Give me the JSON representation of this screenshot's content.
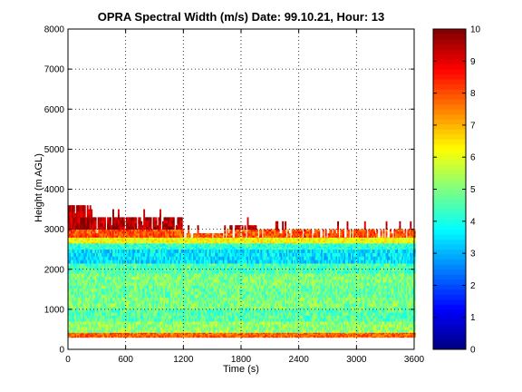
{
  "chart_data": {
    "type": "heatmap",
    "title": "OPRA Spectral Width (m/s)  Date: 99.10.21, Hour: 13",
    "xlabel": "Time (s)",
    "ylabel": "Height (m AGL)",
    "xlim": [
      0,
      3600
    ],
    "ylim": [
      0,
      8000
    ],
    "xticks": [
      0,
      600,
      1200,
      1800,
      2400,
      3000,
      3600
    ],
    "yticks": [
      0,
      1000,
      2000,
      3000,
      4000,
      5000,
      6000,
      7000,
      8000
    ],
    "grid": true,
    "colorbar": {
      "range": [
        0,
        10
      ],
      "ticks": [
        0,
        1,
        2,
        3,
        4,
        5,
        6,
        7,
        8,
        9,
        10
      ],
      "colormap": "jet"
    },
    "data_extent": {
      "x": [
        0,
        3600
      ],
      "y": [
        300,
        3600
      ]
    },
    "profiles": [
      {
        "height_range": [
          300,
          420
        ],
        "approx_value": 7.8
      },
      {
        "height_range": [
          420,
          700
        ],
        "approx_value": 5.2
      },
      {
        "height_range": [
          700,
          1000
        ],
        "approx_value": 4.6
      },
      {
        "height_range": [
          1000,
          1300
        ],
        "approx_value": 5.0
      },
      {
        "height_range": [
          1300,
          1600
        ],
        "approx_value": 4.8
      },
      {
        "height_range": [
          1600,
          1900
        ],
        "approx_value": 5.0
      },
      {
        "height_range": [
          1900,
          2150
        ],
        "approx_value": 4.5
      },
      {
        "height_range": [
          2150,
          2500
        ],
        "approx_value": 3.5
      },
      {
        "height_range": [
          2500,
          2650
        ],
        "approx_value": 4.2
      },
      {
        "height_range": [
          2650,
          2800
        ],
        "approx_value": 6.2
      },
      {
        "height_range": [
          2800,
          3000
        ],
        "approx_value": 8.0
      },
      {
        "height_range": [
          3000,
          3600
        ],
        "approx_value": 9.5
      }
    ],
    "top_boundary": [
      {
        "time_range": [
          0,
          240
        ],
        "top": 3600
      },
      {
        "time_range": [
          240,
          1200
        ],
        "top": 3300
      },
      {
        "time_range": [
          1200,
          1620
        ],
        "top": 2900
      },
      {
        "time_range": [
          1620,
          1950
        ],
        "top": 3100
      },
      {
        "time_range": [
          1950,
          3600
        ],
        "top": 3000
      }
    ]
  }
}
